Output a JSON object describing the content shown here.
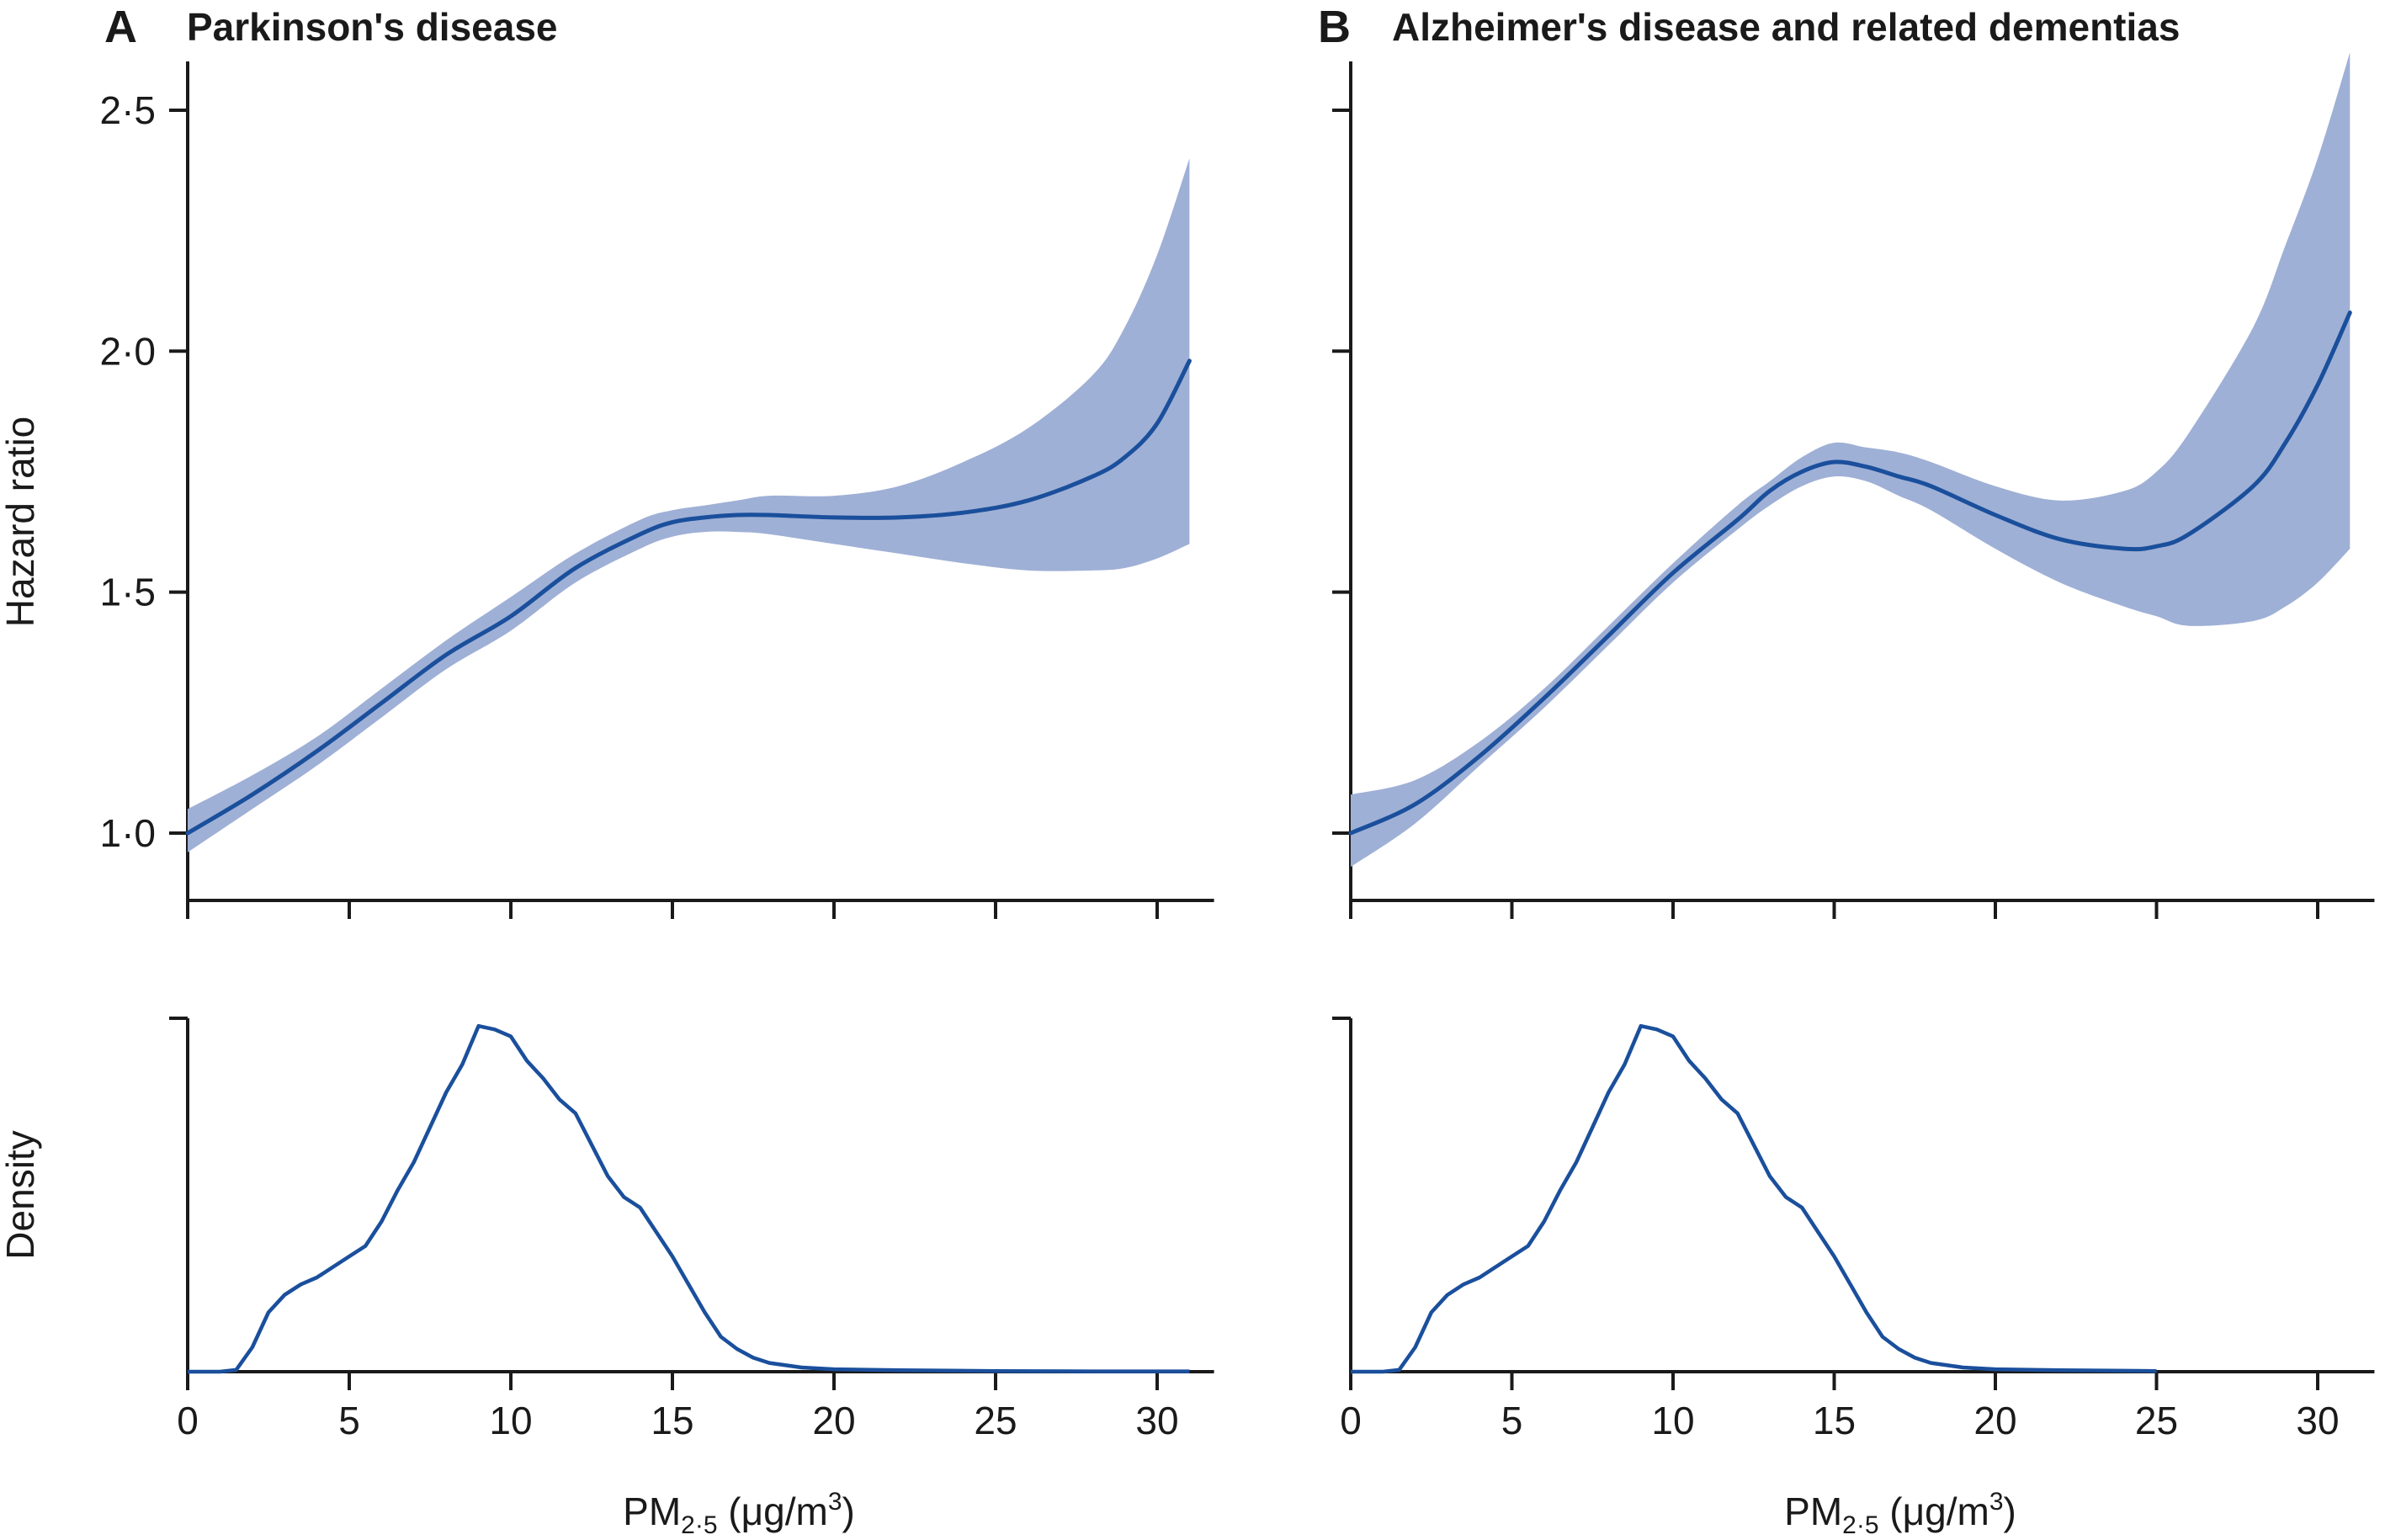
{
  "colors": {
    "line": "#1a4f9c",
    "band": "#9fb0d6",
    "axis": "#1a1a1a"
  },
  "y_axis_label_top": "Hazard ratio",
  "y_axis_label_bottom": "Density",
  "x_axis_label_main": "PM",
  "x_axis_label_sub": "2·5",
  "x_axis_label_unit_open": " (μg/m",
  "x_axis_label_unit_sup": "3",
  "x_axis_label_unit_close": ")",
  "chart_data": [
    {
      "type": "line",
      "panel": "A",
      "title": "Parkinson's disease",
      "ylabel": "Hazard ratio",
      "xlim": [
        0,
        32
      ],
      "ylim": [
        0.95,
        2.5
      ],
      "x_ticks": [
        0,
        5,
        10,
        15,
        20,
        25,
        30
      ],
      "y_ticks": [
        1.0,
        1.5,
        2.0,
        2.5
      ],
      "y_tick_labels": [
        "1·0",
        "1·5",
        "2·0",
        "2·5"
      ],
      "series": [
        {
          "x": [
            0,
            2,
            4,
            6,
            8,
            10,
            12,
            14,
            15,
            16,
            17,
            18,
            20,
            22,
            24,
            26,
            28,
            29,
            30,
            31
          ],
          "y": [
            1.0,
            1.08,
            1.17,
            1.27,
            1.37,
            1.45,
            1.55,
            1.62,
            1.645,
            1.655,
            1.66,
            1.66,
            1.655,
            1.655,
            1.665,
            1.69,
            1.74,
            1.78,
            1.85,
            1.98
          ],
          "lower": [
            0.96,
            1.05,
            1.14,
            1.24,
            1.34,
            1.42,
            1.52,
            1.59,
            1.615,
            1.625,
            1.625,
            1.62,
            1.6,
            1.58,
            1.56,
            1.545,
            1.545,
            1.55,
            1.57,
            1.6
          ],
          "upper": [
            1.05,
            1.12,
            1.2,
            1.3,
            1.4,
            1.49,
            1.58,
            1.65,
            1.67,
            1.68,
            1.69,
            1.7,
            1.7,
            1.72,
            1.77,
            1.84,
            1.95,
            2.05,
            2.2,
            2.4
          ]
        }
      ]
    },
    {
      "type": "line",
      "panel": "B",
      "title": "Alzheimer's disease and related dementias",
      "ylabel": "Hazard ratio",
      "xlim": [
        0,
        32
      ],
      "ylim": [
        0.95,
        2.5
      ],
      "x_ticks": [
        0,
        5,
        10,
        15,
        20,
        25,
        30
      ],
      "y_ticks": [
        1.0,
        1.5,
        2.0,
        2.5
      ],
      "y_tick_labels": [
        "1·0",
        "1·5",
        "2·0",
        "2·5"
      ],
      "series": [
        {
          "x": [
            0,
            2,
            4,
            6,
            8,
            10,
            12,
            13,
            14,
            15,
            16,
            17,
            18,
            20,
            22,
            24,
            25,
            26,
            28,
            29,
            30,
            31
          ],
          "y": [
            1.0,
            1.06,
            1.16,
            1.28,
            1.41,
            1.54,
            1.65,
            1.71,
            1.75,
            1.77,
            1.76,
            1.74,
            1.72,
            1.66,
            1.61,
            1.59,
            1.595,
            1.62,
            1.72,
            1.81,
            1.93,
            2.08
          ],
          "lower": [
            0.93,
            1.02,
            1.14,
            1.26,
            1.39,
            1.52,
            1.63,
            1.68,
            1.72,
            1.74,
            1.73,
            1.7,
            1.67,
            1.59,
            1.52,
            1.47,
            1.45,
            1.43,
            1.44,
            1.47,
            1.52,
            1.59
          ],
          "upper": [
            1.08,
            1.11,
            1.19,
            1.3,
            1.43,
            1.56,
            1.68,
            1.73,
            1.78,
            1.81,
            1.8,
            1.79,
            1.77,
            1.72,
            1.69,
            1.71,
            1.75,
            1.83,
            2.05,
            2.22,
            2.4,
            2.62
          ]
        }
      ]
    },
    {
      "type": "line",
      "panel": "A-density",
      "ylabel": "Density",
      "xlim": [
        0,
        32
      ],
      "ylim": [
        0,
        1
      ],
      "x_ticks": [
        0,
        5,
        10,
        15,
        20,
        25,
        30
      ],
      "series": [
        {
          "x": [
            0,
            1,
            1.5,
            2,
            2.5,
            3,
            3.5,
            4,
            4.5,
            5,
            5.5,
            6,
            6.5,
            7,
            7.5,
            8,
            8.5,
            9,
            9.5,
            10,
            10.5,
            11,
            11.5,
            12,
            12.5,
            13,
            13.5,
            14,
            14.5,
            15,
            15.5,
            16,
            16.5,
            17,
            17.5,
            18,
            19,
            20,
            22,
            25,
            28,
            31
          ],
          "y": [
            0,
            0,
            0.005,
            0.07,
            0.17,
            0.22,
            0.25,
            0.27,
            0.3,
            0.33,
            0.36,
            0.43,
            0.52,
            0.6,
            0.7,
            0.8,
            0.88,
            0.99,
            0.98,
            0.96,
            0.89,
            0.84,
            0.78,
            0.74,
            0.65,
            0.56,
            0.5,
            0.47,
            0.4,
            0.33,
            0.25,
            0.17,
            0.1,
            0.065,
            0.04,
            0.025,
            0.012,
            0.007,
            0.004,
            0.002,
            0.001,
            0.001
          ]
        }
      ]
    },
    {
      "type": "line",
      "panel": "B-density",
      "ylabel": "Density",
      "xlim": [
        0,
        32
      ],
      "ylim": [
        0,
        1
      ],
      "x_ticks": [
        0,
        5,
        10,
        15,
        20,
        25,
        30
      ],
      "series": [
        {
          "x": [
            0,
            1,
            1.5,
            2,
            2.5,
            3,
            3.5,
            4,
            4.5,
            5,
            5.5,
            6,
            6.5,
            7,
            7.5,
            8,
            8.5,
            9,
            9.5,
            10,
            10.5,
            11,
            11.5,
            12,
            12.5,
            13,
            13.5,
            14,
            14.5,
            15,
            15.5,
            16,
            16.5,
            17,
            17.5,
            18,
            19,
            20,
            22,
            25
          ],
          "y": [
            0,
            0,
            0.005,
            0.07,
            0.17,
            0.22,
            0.25,
            0.27,
            0.3,
            0.33,
            0.36,
            0.43,
            0.52,
            0.6,
            0.7,
            0.8,
            0.88,
            0.99,
            0.98,
            0.96,
            0.89,
            0.84,
            0.78,
            0.74,
            0.65,
            0.56,
            0.5,
            0.47,
            0.4,
            0.33,
            0.25,
            0.17,
            0.1,
            0.065,
            0.04,
            0.025,
            0.012,
            0.007,
            0.004,
            0.002
          ]
        }
      ]
    }
  ]
}
